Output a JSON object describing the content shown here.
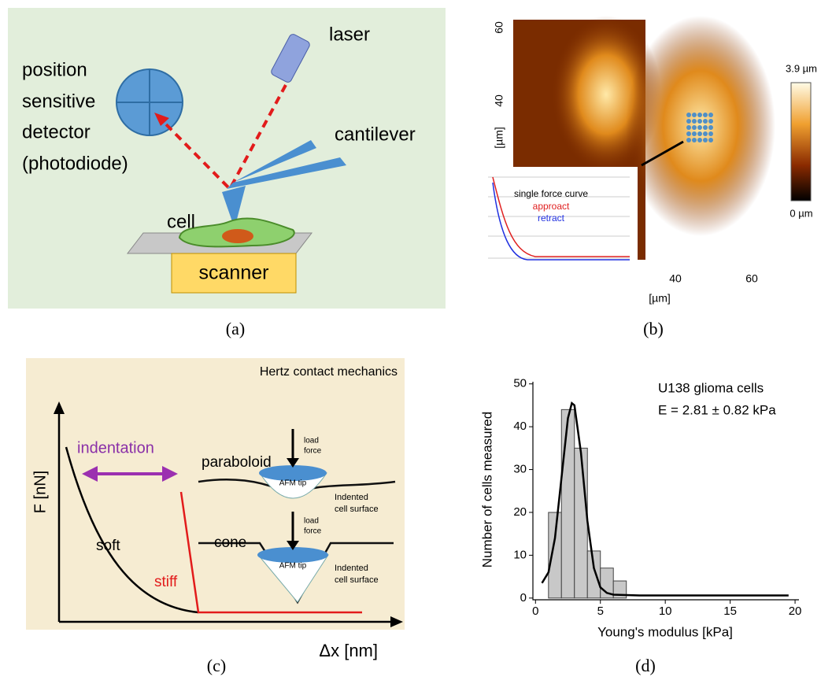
{
  "panels": {
    "a": {
      "label": "(a)",
      "laser": "laser",
      "detector": [
        "position",
        "sensitive",
        "detector",
        "(photodiode)"
      ],
      "cantilever": "cantilever",
      "cell": "cell",
      "scanner": "scanner"
    },
    "b": {
      "label": "(b)",
      "yticks": [
        "60",
        "40"
      ],
      "ylabel": "[µm]",
      "xticks": [
        "40",
        "60"
      ],
      "xlabel": "[µm]",
      "cbar_max": "3.9 µm",
      "cbar_min": "0 µm",
      "inset_title": "single force curve",
      "inset_approach": "approact",
      "inset_retract": "retract"
    },
    "c": {
      "label": "(c)",
      "title": "Hertz contact mechanics",
      "indentation": "indentation",
      "paraboloid": "paraboloid",
      "cone": "cone",
      "load": "load",
      "force": "force",
      "tip": "AFM tip",
      "indented": "Indented",
      "surface": "cell surface",
      "soft": "soft",
      "stiff": "stiff",
      "ylabel": "F [nN]",
      "xlabel": "Δx [nm]"
    },
    "d": {
      "label": "(d)"
    }
  },
  "chart_data": {
    "type": "histogram",
    "title": "U138 glioma cells",
    "subtitle": "E = 2.81 ± 0.82 kPa",
    "x_label": "Young's modulus [kPa]",
    "y_label": "Number of cells measured",
    "bins": [
      1,
      2,
      3,
      4,
      5,
      6,
      7
    ],
    "values": [
      20,
      44,
      35,
      11,
      7,
      4
    ],
    "color": "#c8c8c8",
    "fit": {
      "x": [
        0.5,
        1,
        1.5,
        2,
        2.5,
        2.8,
        3,
        3.5,
        4,
        4.5,
        5,
        5.5,
        6,
        8,
        12,
        19.5
      ],
      "values": [
        3.5,
        6,
        14,
        28,
        42,
        45.5,
        45,
        34,
        18,
        7,
        2.5,
        1.2,
        0.8,
        0.6,
        0.6,
        0.6
      ],
      "color": "#000000"
    },
    "xlim": [
      -0.2,
      20.3
    ],
    "ylim": [
      -0.4,
      50.5
    ],
    "xticks": [
      0,
      5,
      10,
      15,
      20
    ],
    "yticks": [
      0,
      10,
      20,
      30,
      40,
      50
    ]
  }
}
